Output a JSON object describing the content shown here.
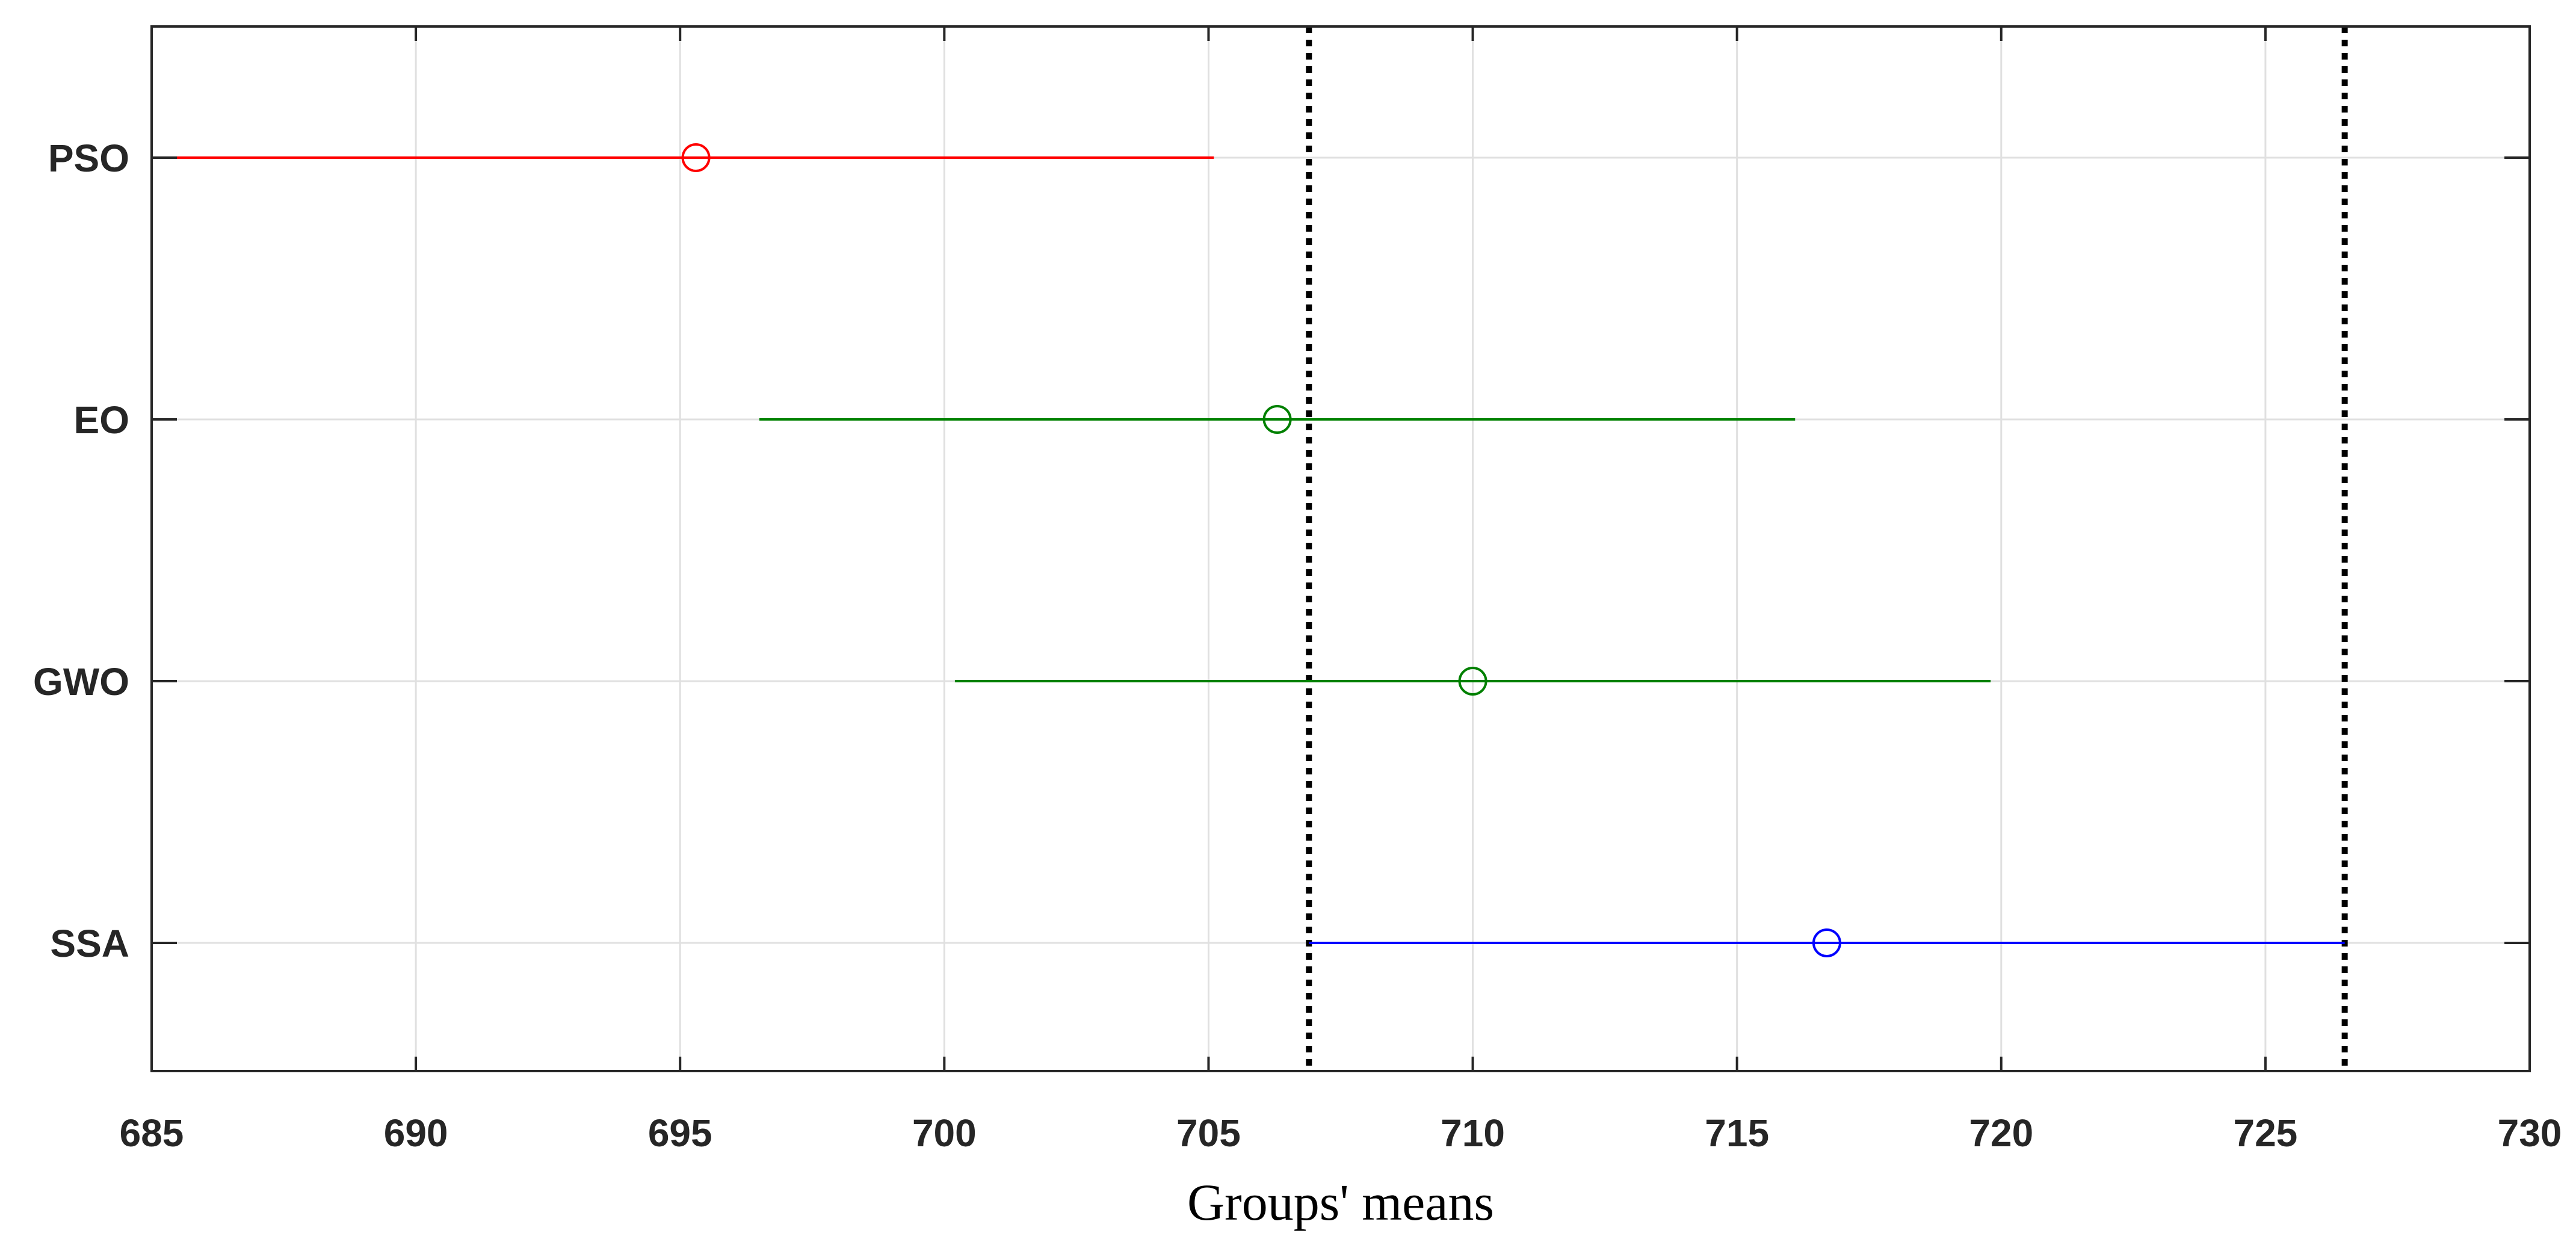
{
  "chart_data": {
    "type": "multiple-comparison",
    "xlabel": "Groups' means",
    "ylabel": "",
    "title": "",
    "xlim": [
      685,
      730
    ],
    "xticks": [
      "685",
      "690",
      "695",
      "700",
      "705",
      "710",
      "715",
      "720",
      "725",
      "730"
    ],
    "categories": [
      "PSO",
      "EO",
      "GWO",
      "SSA"
    ],
    "grid": true,
    "series": [
      {
        "category": "PSO",
        "mean": 695.3,
        "lower": 685.4,
        "upper": 705.1,
        "color": "#ff0000"
      },
      {
        "category": "EO",
        "mean": 706.3,
        "lower": 696.5,
        "upper": 716.1,
        "color": "#008000"
      },
      {
        "category": "GWO",
        "mean": 710.0,
        "lower": 700.2,
        "upper": 719.8,
        "color": "#008000"
      },
      {
        "category": "SSA",
        "mean": 716.7,
        "lower": 706.9,
        "upper": 726.5,
        "color": "#0000ff"
      }
    ],
    "reference_lines": [
      706.9,
      726.5
    ],
    "reference_line_color": "#000000"
  }
}
